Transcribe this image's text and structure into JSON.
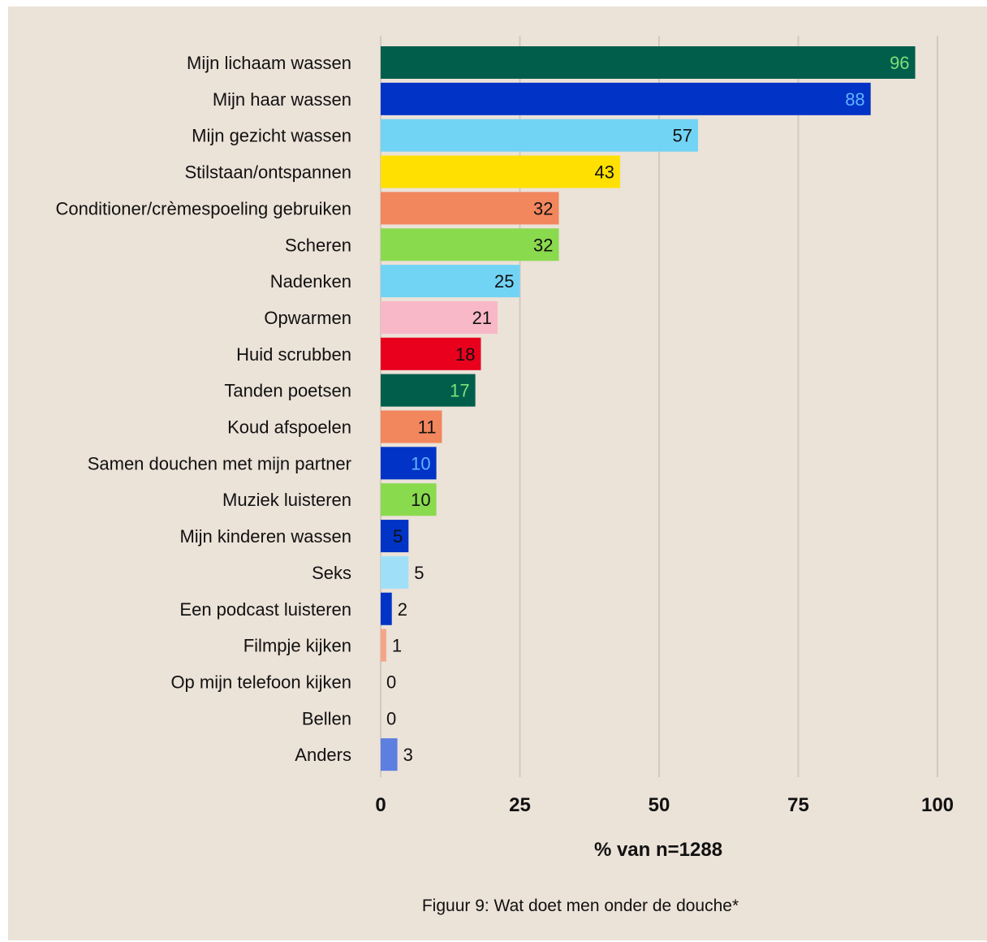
{
  "chart_data": {
    "type": "bar",
    "orientation": "horizontal",
    "categories": [
      "Mijn lichaam wassen",
      "Mijn haar wassen",
      "Mijn gezicht wassen",
      "Stilstaan/ontspannen",
      "Conditioner/crèmespoeling gebruiken",
      "Scheren",
      "Nadenken",
      "Opwarmen",
      "Huid scrubben",
      "Tanden poetsen",
      "Koud afspoelen",
      "Samen douchen met mijn partner",
      "Muziek luisteren",
      "Mijn kinderen wassen",
      "Seks",
      "Een podcast luisteren",
      "Filmpje kijken",
      "Op mijn telefoon kijken",
      "Bellen",
      "Anders"
    ],
    "values": [
      96,
      88,
      57,
      43,
      32,
      32,
      25,
      21,
      18,
      17,
      11,
      10,
      10,
      5,
      5,
      2,
      1,
      0,
      0,
      3
    ],
    "value_labels": [
      "96",
      "88",
      "57",
      "43",
      "32",
      "32",
      "25",
      "21",
      "18",
      "17",
      "11",
      "10",
      "10",
      "5",
      "5",
      "2",
      "1",
      "0",
      "0",
      "3"
    ],
    "bar_colors": [
      "#005e4b",
      "#0033c6",
      "#72d4f5",
      "#ffe000",
      "#f2865d",
      "#8ada4e",
      "#72d4f5",
      "#f8b8c8",
      "#e8001c",
      "#005e4b",
      "#f2865d",
      "#0033c6",
      "#8ada4e",
      "#0033c6",
      "#9fe0f8",
      "#0033c6",
      "#f5a488",
      "#f5a488",
      "#f5a488",
      "#5c7fe0"
    ],
    "label_colors": [
      "#7ee07a",
      "#5fb4ff",
      "#111111",
      "#111111",
      "#111111",
      "#111111",
      "#111111",
      "#111111",
      "#111111",
      "#7ee07a",
      "#111111",
      "#5fb4ff",
      "#111111",
      "#111111",
      "#111111",
      "#111111",
      "#111111",
      "#111111",
      "#111111",
      "#111111"
    ],
    "label_inside": [
      true,
      true,
      true,
      true,
      true,
      true,
      true,
      true,
      true,
      true,
      true,
      true,
      true,
      true,
      false,
      false,
      false,
      false,
      false,
      false
    ],
    "xlim": [
      0,
      100
    ],
    "xticks": [
      0,
      25,
      50,
      75,
      100
    ],
    "xtick_labels": [
      "0",
      "25",
      "50",
      "75",
      "100"
    ],
    "xlabel": "% van n=1288",
    "ylabel": "",
    "grid": true,
    "gridline_color": "#d3c9bf",
    "background_color": "#ebe2d8"
  },
  "caption": "Figuur 9: Wat doet men onder de douche*"
}
